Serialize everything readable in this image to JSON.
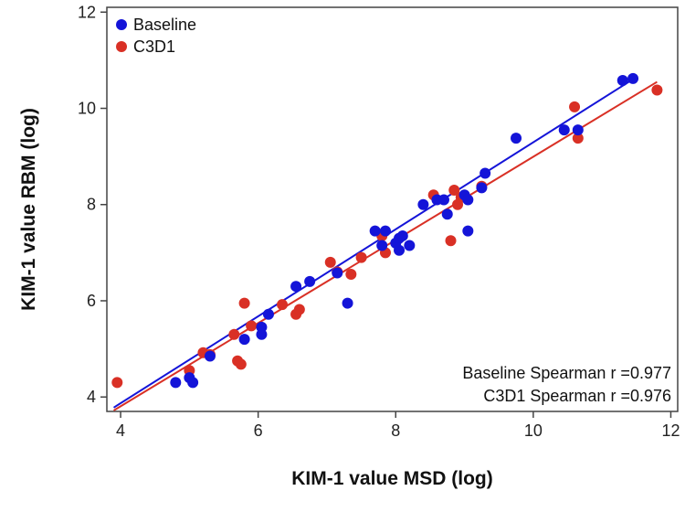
{
  "chart_data": {
    "type": "scatter",
    "xlabel": "KIM-1 value MSD (log)",
    "ylabel": "KIM-1 value RBM (log)",
    "xlim": [
      3.8,
      12.1
    ],
    "ylim": [
      3.7,
      12.1
    ],
    "xticks": [
      4,
      6,
      8,
      10,
      12
    ],
    "yticks": [
      4,
      6,
      8,
      10,
      12
    ],
    "grid": false,
    "legend_position": "top-left",
    "series": [
      {
        "name": "Baseline",
        "color": "#1414d8",
        "points": [
          [
            4.8,
            4.3
          ],
          [
            5.0,
            4.4
          ],
          [
            5.05,
            4.3
          ],
          [
            5.3,
            4.85
          ],
          [
            5.8,
            5.2
          ],
          [
            6.05,
            5.3
          ],
          [
            6.05,
            5.45
          ],
          [
            6.15,
            5.72
          ],
          [
            6.55,
            6.3
          ],
          [
            6.75,
            6.4
          ],
          [
            7.15,
            6.58
          ],
          [
            7.3,
            5.95
          ],
          [
            7.7,
            7.45
          ],
          [
            7.8,
            7.15
          ],
          [
            7.85,
            7.45
          ],
          [
            8.0,
            7.2
          ],
          [
            8.05,
            7.3
          ],
          [
            8.05,
            7.05
          ],
          [
            8.1,
            7.35
          ],
          [
            8.2,
            7.15
          ],
          [
            8.4,
            8.0
          ],
          [
            8.6,
            8.1
          ],
          [
            8.7,
            8.1
          ],
          [
            8.75,
            7.8
          ],
          [
            9.0,
            8.2
          ],
          [
            9.05,
            7.45
          ],
          [
            9.05,
            8.1
          ],
          [
            9.3,
            8.65
          ],
          [
            9.25,
            8.35
          ],
          [
            9.75,
            9.38
          ],
          [
            10.45,
            9.55
          ],
          [
            10.65,
            9.55
          ],
          [
            11.3,
            10.58
          ],
          [
            11.45,
            10.62
          ]
        ],
        "fit": [
          [
            3.9,
            3.78
          ],
          [
            11.5,
            10.65
          ]
        ]
      },
      {
        "name": "C3D1",
        "color": "#d93025",
        "points": [
          [
            3.95,
            4.3
          ],
          [
            5.0,
            4.55
          ],
          [
            5.2,
            4.92
          ],
          [
            5.3,
            4.88
          ],
          [
            5.65,
            5.3
          ],
          [
            5.7,
            4.75
          ],
          [
            5.75,
            4.68
          ],
          [
            5.8,
            5.95
          ],
          [
            5.9,
            5.48
          ],
          [
            6.35,
            5.92
          ],
          [
            6.55,
            5.72
          ],
          [
            6.6,
            5.82
          ],
          [
            7.05,
            6.8
          ],
          [
            7.15,
            6.6
          ],
          [
            7.35,
            6.55
          ],
          [
            7.5,
            6.9
          ],
          [
            7.8,
            7.35
          ],
          [
            7.85,
            7.0
          ],
          [
            8.55,
            8.2
          ],
          [
            8.8,
            7.25
          ],
          [
            8.85,
            8.3
          ],
          [
            8.9,
            8.0
          ],
          [
            8.95,
            8.15
          ],
          [
            9.25,
            8.38
          ],
          [
            10.6,
            10.03
          ],
          [
            10.65,
            9.38
          ],
          [
            11.8,
            10.38
          ]
        ],
        "fit": [
          [
            3.9,
            3.72
          ],
          [
            11.8,
            10.55
          ]
        ]
      }
    ],
    "annotations": [
      "Baseline Spearman r  =0.977",
      "C3D1 Spearman r  =0.976"
    ]
  }
}
